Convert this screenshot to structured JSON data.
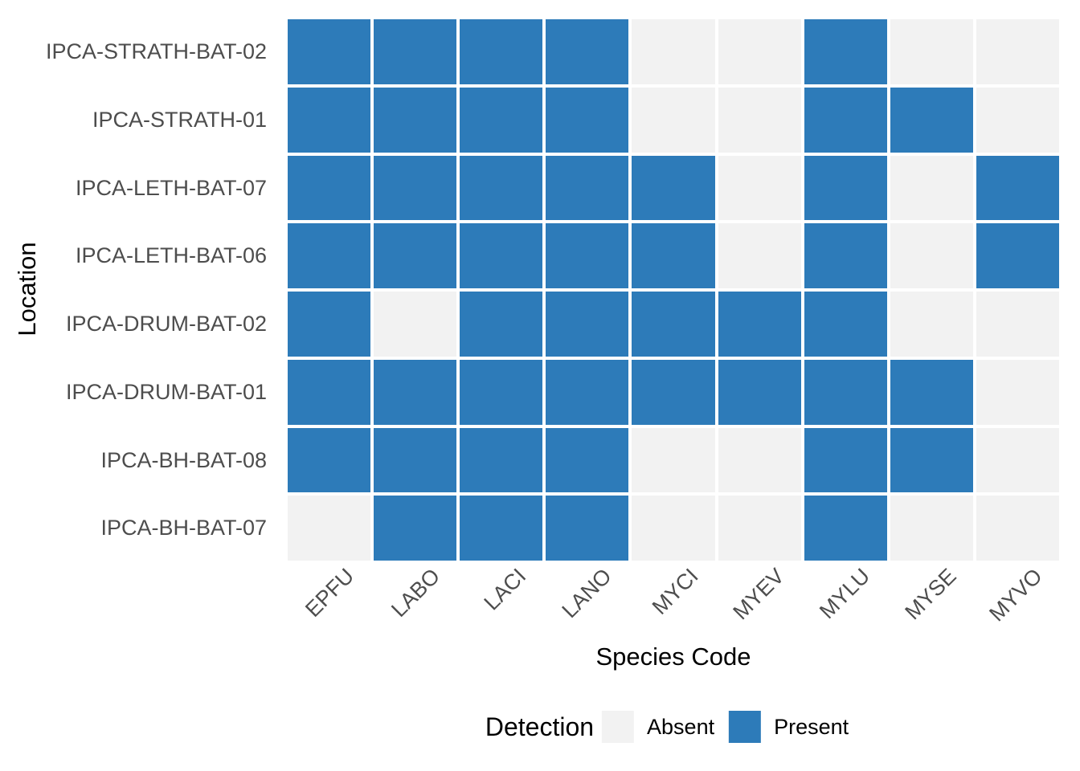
{
  "chart_data": {
    "type": "heatmap",
    "title": "",
    "xlabel": "Species Code",
    "ylabel": "Location",
    "columns": [
      "EPFU",
      "LABO",
      "LACI",
      "LANO",
      "MYCI",
      "MYEV",
      "MYLU",
      "MYSE",
      "MYVO"
    ],
    "rows": [
      "IPCA-STRATH-BAT-02",
      "IPCA-STRATH-01",
      "IPCA-LETH-BAT-07",
      "IPCA-LETH-BAT-06",
      "IPCA-DRUM-BAT-02",
      "IPCA-DRUM-BAT-01",
      "IPCA-BH-BAT-08",
      "IPCA-BH-BAT-07"
    ],
    "matrix": [
      [
        1,
        1,
        1,
        1,
        0,
        0,
        1,
        0,
        0
      ],
      [
        1,
        1,
        1,
        1,
        0,
        0,
        1,
        1,
        0
      ],
      [
        1,
        1,
        1,
        1,
        1,
        0,
        1,
        0,
        1
      ],
      [
        1,
        1,
        1,
        1,
        1,
        0,
        1,
        0,
        1
      ],
      [
        1,
        0,
        1,
        1,
        1,
        1,
        1,
        0,
        0
      ],
      [
        1,
        1,
        1,
        1,
        1,
        1,
        1,
        1,
        0
      ],
      [
        1,
        1,
        1,
        1,
        0,
        0,
        1,
        1,
        0
      ],
      [
        0,
        1,
        1,
        1,
        0,
        0,
        1,
        0,
        0
      ]
    ],
    "value_labels": {
      "0": "Absent",
      "1": "Present"
    },
    "legend": {
      "title": "Detection",
      "position": "bottom",
      "entries": [
        {
          "label": "Absent",
          "value": 0,
          "color": "#f2f2f2"
        },
        {
          "label": "Present",
          "value": 1,
          "color": "#2d7bb9"
        }
      ]
    },
    "colors": {
      "absent": "#f2f2f2",
      "present": "#2d7bb9",
      "tick_label": "#4d4d4d",
      "axis_title": "#000000",
      "background": "#ffffff"
    },
    "x_tick_angle": 45,
    "grid": false
  }
}
